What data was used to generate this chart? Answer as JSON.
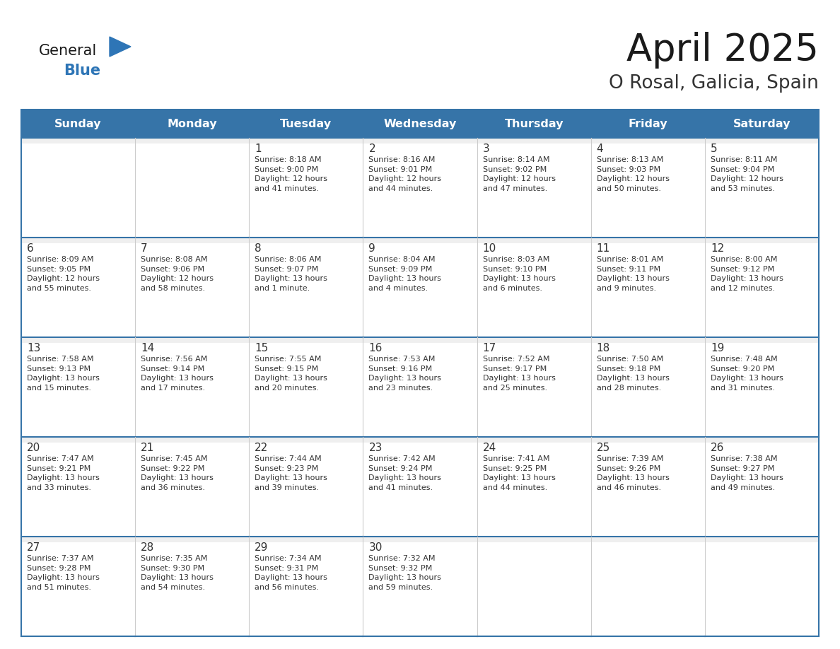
{
  "title": "April 2025",
  "subtitle": "O Rosal, Galicia, Spain",
  "days_of_week": [
    "Sunday",
    "Monday",
    "Tuesday",
    "Wednesday",
    "Thursday",
    "Friday",
    "Saturday"
  ],
  "header_bg": "#3674a8",
  "header_text": "#FFFFFF",
  "border_color": "#3674a8",
  "cell_bg": "#FFFFFF",
  "cell_top_bg": "#F0F0F0",
  "text_color": "#333333",
  "day_num_color": "#333333",
  "title_color": "#1a1a1a",
  "subtitle_color": "#333333",
  "generalblue_dark": "#1a1a1a",
  "generalblue_blue": "#2E75B6",
  "calendar_data": [
    [
      {
        "day": "",
        "info": ""
      },
      {
        "day": "",
        "info": ""
      },
      {
        "day": "1",
        "info": "Sunrise: 8:18 AM\nSunset: 9:00 PM\nDaylight: 12 hours\nand 41 minutes."
      },
      {
        "day": "2",
        "info": "Sunrise: 8:16 AM\nSunset: 9:01 PM\nDaylight: 12 hours\nand 44 minutes."
      },
      {
        "day": "3",
        "info": "Sunrise: 8:14 AM\nSunset: 9:02 PM\nDaylight: 12 hours\nand 47 minutes."
      },
      {
        "day": "4",
        "info": "Sunrise: 8:13 AM\nSunset: 9:03 PM\nDaylight: 12 hours\nand 50 minutes."
      },
      {
        "day": "5",
        "info": "Sunrise: 8:11 AM\nSunset: 9:04 PM\nDaylight: 12 hours\nand 53 minutes."
      }
    ],
    [
      {
        "day": "6",
        "info": "Sunrise: 8:09 AM\nSunset: 9:05 PM\nDaylight: 12 hours\nand 55 minutes."
      },
      {
        "day": "7",
        "info": "Sunrise: 8:08 AM\nSunset: 9:06 PM\nDaylight: 12 hours\nand 58 minutes."
      },
      {
        "day": "8",
        "info": "Sunrise: 8:06 AM\nSunset: 9:07 PM\nDaylight: 13 hours\nand 1 minute."
      },
      {
        "day": "9",
        "info": "Sunrise: 8:04 AM\nSunset: 9:09 PM\nDaylight: 13 hours\nand 4 minutes."
      },
      {
        "day": "10",
        "info": "Sunrise: 8:03 AM\nSunset: 9:10 PM\nDaylight: 13 hours\nand 6 minutes."
      },
      {
        "day": "11",
        "info": "Sunrise: 8:01 AM\nSunset: 9:11 PM\nDaylight: 13 hours\nand 9 minutes."
      },
      {
        "day": "12",
        "info": "Sunrise: 8:00 AM\nSunset: 9:12 PM\nDaylight: 13 hours\nand 12 minutes."
      }
    ],
    [
      {
        "day": "13",
        "info": "Sunrise: 7:58 AM\nSunset: 9:13 PM\nDaylight: 13 hours\nand 15 minutes."
      },
      {
        "day": "14",
        "info": "Sunrise: 7:56 AM\nSunset: 9:14 PM\nDaylight: 13 hours\nand 17 minutes."
      },
      {
        "day": "15",
        "info": "Sunrise: 7:55 AM\nSunset: 9:15 PM\nDaylight: 13 hours\nand 20 minutes."
      },
      {
        "day": "16",
        "info": "Sunrise: 7:53 AM\nSunset: 9:16 PM\nDaylight: 13 hours\nand 23 minutes."
      },
      {
        "day": "17",
        "info": "Sunrise: 7:52 AM\nSunset: 9:17 PM\nDaylight: 13 hours\nand 25 minutes."
      },
      {
        "day": "18",
        "info": "Sunrise: 7:50 AM\nSunset: 9:18 PM\nDaylight: 13 hours\nand 28 minutes."
      },
      {
        "day": "19",
        "info": "Sunrise: 7:48 AM\nSunset: 9:20 PM\nDaylight: 13 hours\nand 31 minutes."
      }
    ],
    [
      {
        "day": "20",
        "info": "Sunrise: 7:47 AM\nSunset: 9:21 PM\nDaylight: 13 hours\nand 33 minutes."
      },
      {
        "day": "21",
        "info": "Sunrise: 7:45 AM\nSunset: 9:22 PM\nDaylight: 13 hours\nand 36 minutes."
      },
      {
        "day": "22",
        "info": "Sunrise: 7:44 AM\nSunset: 9:23 PM\nDaylight: 13 hours\nand 39 minutes."
      },
      {
        "day": "23",
        "info": "Sunrise: 7:42 AM\nSunset: 9:24 PM\nDaylight: 13 hours\nand 41 minutes."
      },
      {
        "day": "24",
        "info": "Sunrise: 7:41 AM\nSunset: 9:25 PM\nDaylight: 13 hours\nand 44 minutes."
      },
      {
        "day": "25",
        "info": "Sunrise: 7:39 AM\nSunset: 9:26 PM\nDaylight: 13 hours\nand 46 minutes."
      },
      {
        "day": "26",
        "info": "Sunrise: 7:38 AM\nSunset: 9:27 PM\nDaylight: 13 hours\nand 49 minutes."
      }
    ],
    [
      {
        "day": "27",
        "info": "Sunrise: 7:37 AM\nSunset: 9:28 PM\nDaylight: 13 hours\nand 51 minutes."
      },
      {
        "day": "28",
        "info": "Sunrise: 7:35 AM\nSunset: 9:30 PM\nDaylight: 13 hours\nand 54 minutes."
      },
      {
        "day": "29",
        "info": "Sunrise: 7:34 AM\nSunset: 9:31 PM\nDaylight: 13 hours\nand 56 minutes."
      },
      {
        "day": "30",
        "info": "Sunrise: 7:32 AM\nSunset: 9:32 PM\nDaylight: 13 hours\nand 59 minutes."
      },
      {
        "day": "",
        "info": ""
      },
      {
        "day": "",
        "info": ""
      },
      {
        "day": "",
        "info": ""
      }
    ]
  ],
  "figsize": [
    11.88,
    9.18
  ],
  "dpi": 100
}
